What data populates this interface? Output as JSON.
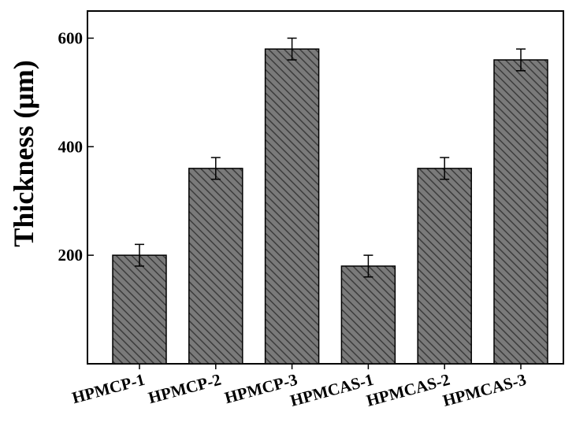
{
  "chart_data": {
    "type": "bar",
    "title": "",
    "xlabel": "",
    "ylabel": "Thickness (μm)",
    "categories": [
      "HPMCP-1",
      "HPMCP-2",
      "HPMCP-3",
      "HPMCAS-1",
      "HPMCAS-2",
      "HPMCAS-3"
    ],
    "values": [
      200,
      360,
      580,
      180,
      360,
      560
    ],
    "errors": [
      20,
      20,
      20,
      20,
      20,
      20
    ],
    "ylim": [
      0,
      650
    ],
    "yticks": [
      200,
      400,
      600
    ],
    "grid": false,
    "legend": "none",
    "bar_color": "#7a7a7a",
    "hatch_color": "#3c3c3c"
  }
}
